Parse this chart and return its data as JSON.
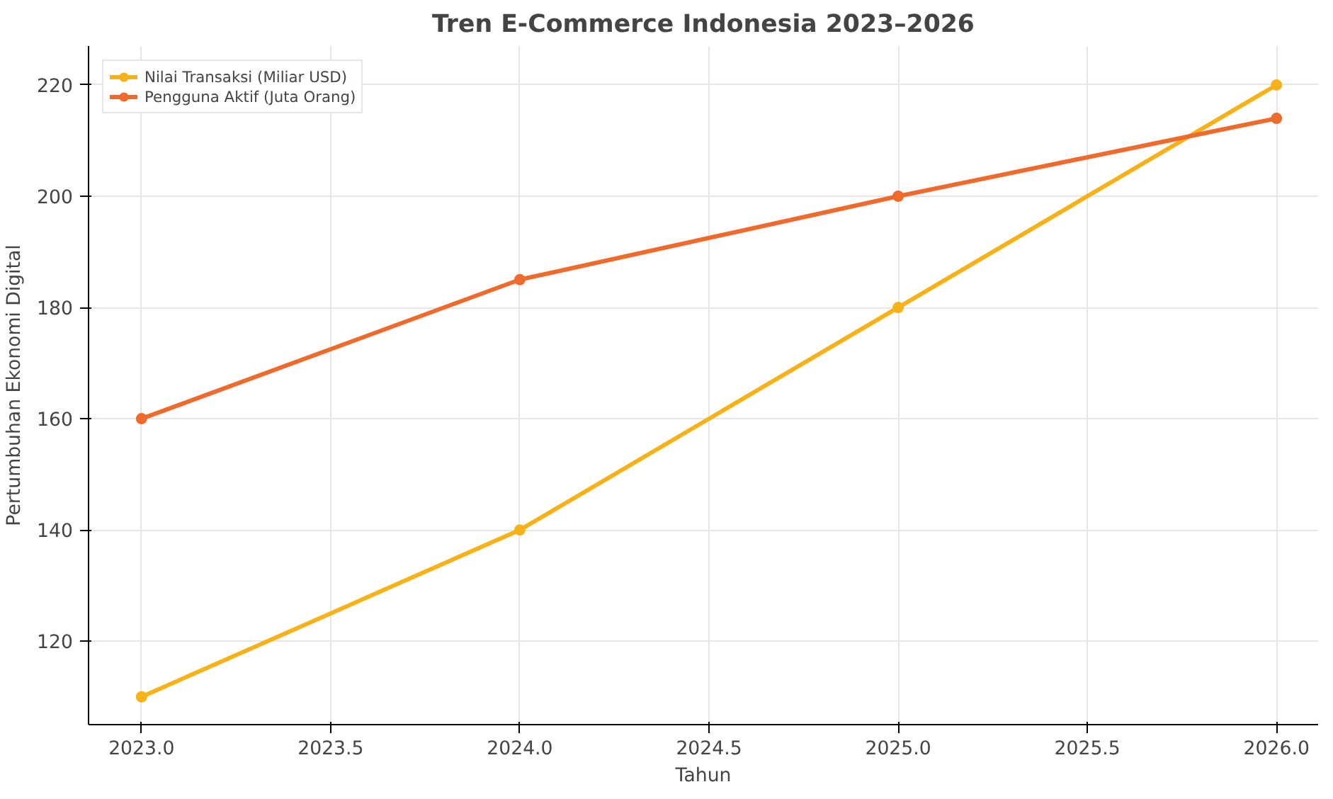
{
  "chart_data": {
    "type": "line",
    "title": "Tren E-Commerce Indonesia 2023–2026",
    "xlabel": "Tahun",
    "ylabel": "Pertumbuhan Ekonomi Digital",
    "x": [
      2023,
      2024,
      2025,
      2026
    ],
    "series": [
      {
        "name": "Nilai Transaksi (Miliar USD)",
        "color": "#f7b21a",
        "values": [
          110,
          140,
          180,
          220
        ]
      },
      {
        "name": "Pengguna Aktif (Juta Orang)",
        "color": "#ee6a2d",
        "values": [
          160,
          185,
          200,
          214
        ]
      }
    ],
    "xlim": [
      2022.86,
      2026.11
    ],
    "ylim": [
      105,
      227
    ],
    "xticks": [
      {
        "value": 2023,
        "label": "2023.0"
      },
      {
        "value": 2023.5,
        "label": "2023.5"
      },
      {
        "value": 2024,
        "label": "2024.0"
      },
      {
        "value": 2024.5,
        "label": "2024.5"
      },
      {
        "value": 2025,
        "label": "2025.0"
      },
      {
        "value": 2025.5,
        "label": "2025.5"
      },
      {
        "value": 2026,
        "label": "2026.0"
      }
    ],
    "yticks": [
      120,
      140,
      160,
      180,
      200,
      220
    ],
    "grid": true,
    "legend": "top left",
    "marker": "circle",
    "line_style": "solid"
  }
}
